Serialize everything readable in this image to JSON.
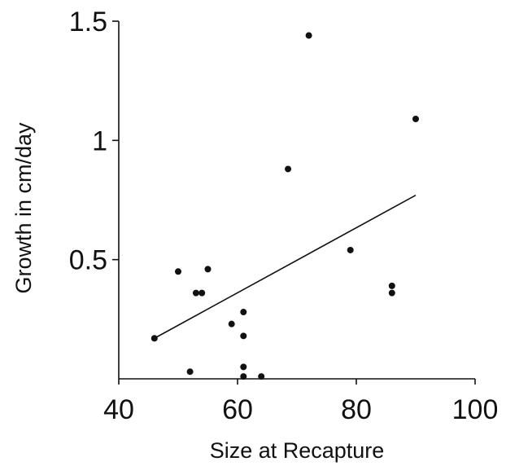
{
  "chart_data": {
    "type": "scatter",
    "title": "",
    "xlabel": "Size at Recapture",
    "ylabel": "Growth in cm/day",
    "xlim": [
      40,
      100
    ],
    "ylim": [
      0,
      1.5
    ],
    "x_ticks": [
      40,
      60,
      80,
      100
    ],
    "x_tick_labels": [
      "40",
      "60",
      "80",
      "100"
    ],
    "y_ticks": [
      0.5,
      1,
      1.5
    ],
    "y_tick_labels": [
      "0.5",
      "1",
      "1.5"
    ],
    "grid": false,
    "legend": "none",
    "series": [
      {
        "x": [
          46,
          50,
          52,
          53,
          54,
          55,
          59,
          61,
          61,
          61,
          61,
          64,
          68.5,
          72,
          79,
          86,
          86,
          90
        ],
        "y": [
          0.17,
          0.45,
          0.03,
          0.36,
          0.36,
          0.46,
          0.23,
          0.28,
          0.18,
          0.05,
          0.01,
          0.01,
          0.88,
          1.44,
          0.54,
          0.39,
          0.36,
          1.09
        ]
      }
    ],
    "trend_line": {
      "x": [
        46,
        90
      ],
      "y": [
        0.17,
        0.77
      ]
    }
  },
  "colors": {
    "ink": "#111111",
    "background": "#ffffff"
  }
}
